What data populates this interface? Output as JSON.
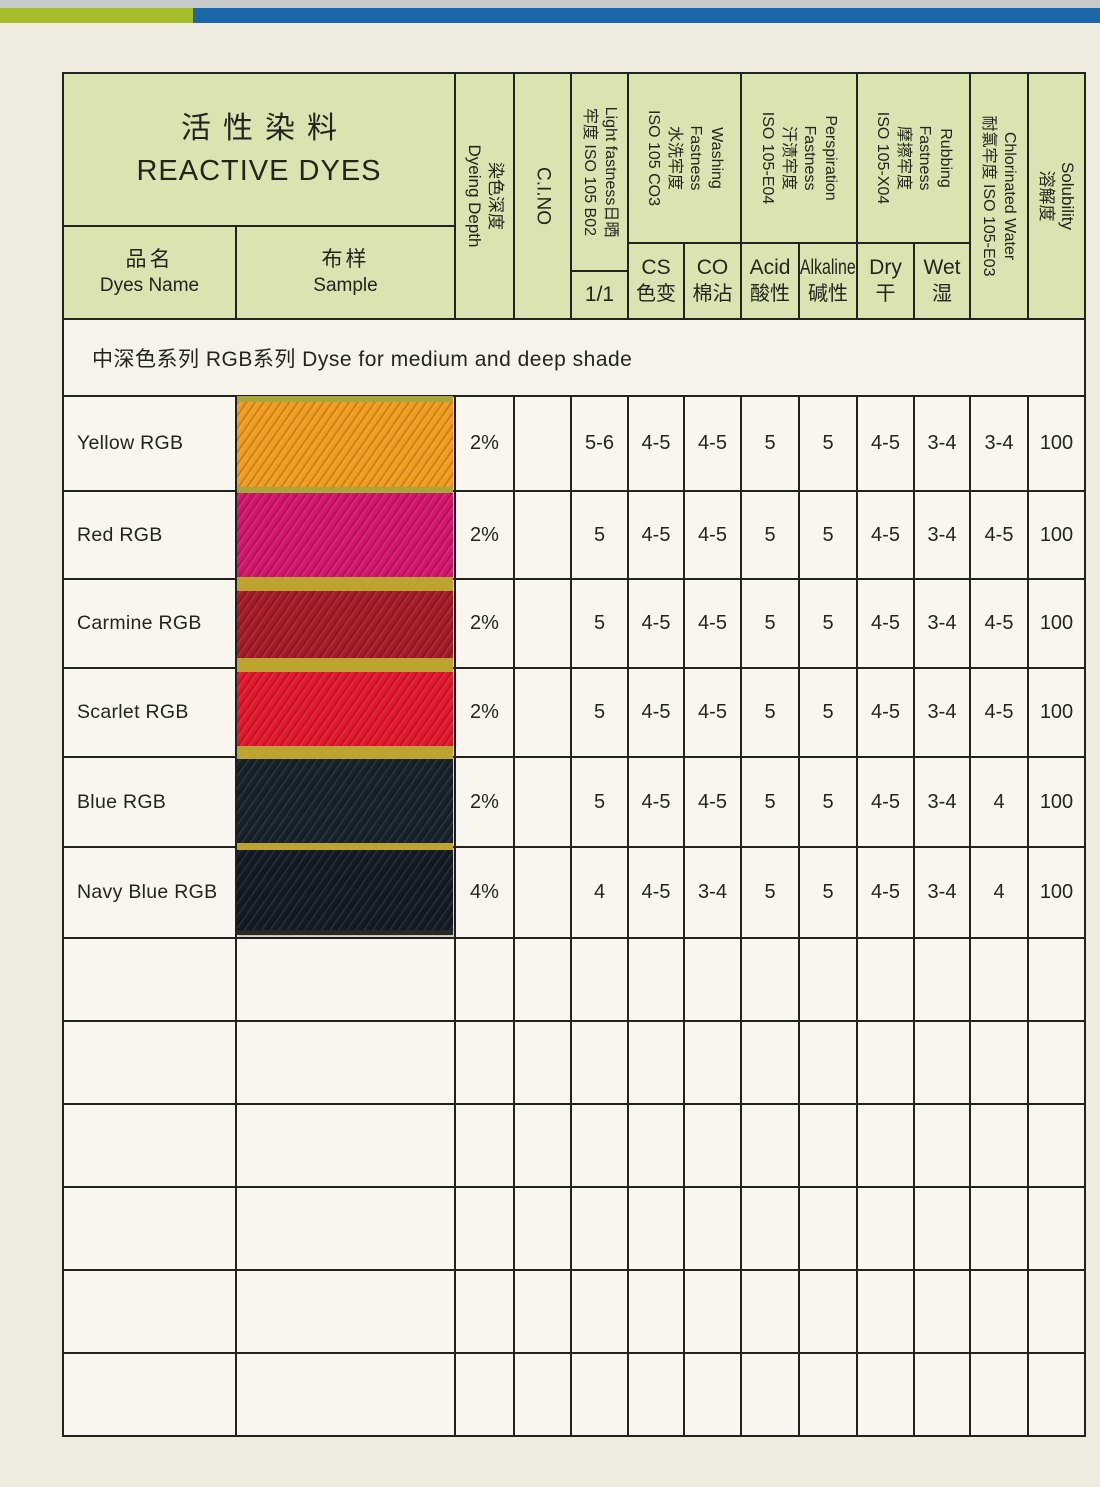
{
  "top_bar": {
    "gray": "#c8cac7",
    "green": "#a4bd28",
    "blue": "#1b67a9"
  },
  "colors": {
    "page_bg": "#efebdf",
    "cell_bg": "#f9f6ef",
    "header_bg": "#dae4b0",
    "border": "#22221f"
  },
  "header": {
    "title_cjk": "活性染料",
    "title_en": "REACTIVE DYES",
    "dyes_name": {
      "cjk": "品名",
      "en": "Dyes Name"
    },
    "sample": {
      "cjk": "布样",
      "en": "Sample"
    },
    "dyeing_depth": {
      "lines": [
        "染色深度",
        "Dyeing Depth"
      ]
    },
    "ci_no": {
      "lines": [
        "C.I.NO"
      ]
    },
    "light": {
      "lines": [
        "Light fastness日晒",
        "牢度 ISO 105 B02"
      ],
      "sub": "1/1"
    },
    "washing": {
      "lines": [
        "Washing",
        "Fastness",
        "水洗牢度",
        "ISO 105 CO3"
      ],
      "sub1": {
        "en": "CS",
        "cjk": "色变"
      },
      "sub2": {
        "en": "CO",
        "cjk": "棉沾"
      }
    },
    "perspiration": {
      "lines": [
        "Perspiration",
        "Fastness",
        "汗渍牢度",
        "ISO 105-E04"
      ],
      "sub1": {
        "en": "Acid",
        "cjk": "酸性"
      },
      "sub2": {
        "en": "Alkaline",
        "cjk": "碱性"
      }
    },
    "rubbing": {
      "lines": [
        "Rubbing",
        "Fastness",
        "摩擦牢度",
        "ISO 105-X04"
      ],
      "sub1": {
        "en": "Dry",
        "cjk": "干"
      },
      "sub2": {
        "en": "Wet",
        "cjk": "湿"
      }
    },
    "chlorinated": {
      "lines": [
        "Chlorinated Water",
        "耐氯牢度 ISO 105-E03"
      ]
    },
    "solubility": {
      "lines": [
        "Solubility",
        "溶解度"
      ]
    }
  },
  "section": {
    "label": "中深色系列  RGB系列  Dyse for medium and deep shade"
  },
  "table": {
    "value_columns": [
      "Light fastness 1/1",
      "Washing CS",
      "Washing CO",
      "Perspiration Acid",
      "Perspiration Alkaline",
      "Rubbing Dry",
      "Rubbing Wet",
      "Chlorinated Water",
      "Solubility"
    ],
    "rows": [
      {
        "name": "Yellow RGB",
        "sample_color": "#f09c1e",
        "dyeing_depth": "2%",
        "ci_no": "",
        "values": [
          "5-6",
          "4-5",
          "4-5",
          "5",
          "5",
          "4-5",
          "3-4",
          "3-4",
          "100"
        ]
      },
      {
        "name": "Red RGB",
        "sample_color": "#d4156e",
        "dyeing_depth": "2%",
        "ci_no": "",
        "values": [
          "5",
          "4-5",
          "4-5",
          "5",
          "5",
          "4-5",
          "3-4",
          "4-5",
          "100"
        ]
      },
      {
        "name": "Carmine RGB",
        "sample_color": "#a51b27",
        "dyeing_depth": "2%",
        "ci_no": "",
        "values": [
          "5",
          "4-5",
          "4-5",
          "5",
          "5",
          "4-5",
          "3-4",
          "4-5",
          "100"
        ]
      },
      {
        "name": "Scarlet RGB",
        "sample_color": "#e2182c",
        "dyeing_depth": "2%",
        "ci_no": "",
        "values": [
          "5",
          "4-5",
          "4-5",
          "5",
          "5",
          "4-5",
          "3-4",
          "4-5",
          "100"
        ]
      },
      {
        "name": "Blue RGB",
        "sample_color": "#17222c",
        "dyeing_depth": "2%",
        "ci_no": "",
        "values": [
          "5",
          "4-5",
          "4-5",
          "5",
          "5",
          "4-5",
          "3-4",
          "4",
          "100"
        ]
      },
      {
        "name": "Navy Blue RGB",
        "sample_color": "#121b24",
        "dyeing_depth": "4%",
        "ci_no": "",
        "values": [
          "4",
          "4-5",
          "3-4",
          "5",
          "5",
          "4-5",
          "3-4",
          "4",
          "100"
        ]
      },
      {
        "name": "",
        "sample_color": "",
        "dyeing_depth": "",
        "ci_no": "",
        "values": [
          "",
          "",
          "",
          "",
          "",
          "",
          "",
          "",
          ""
        ]
      },
      {
        "name": "",
        "sample_color": "",
        "dyeing_depth": "",
        "ci_no": "",
        "values": [
          "",
          "",
          "",
          "",
          "",
          "",
          "",
          "",
          ""
        ]
      },
      {
        "name": "",
        "sample_color": "",
        "dyeing_depth": "",
        "ci_no": "",
        "values": [
          "",
          "",
          "",
          "",
          "",
          "",
          "",
          "",
          ""
        ]
      },
      {
        "name": "",
        "sample_color": "",
        "dyeing_depth": "",
        "ci_no": "",
        "values": [
          "",
          "",
          "",
          "",
          "",
          "",
          "",
          "",
          ""
        ]
      },
      {
        "name": "",
        "sample_color": "",
        "dyeing_depth": "",
        "ci_no": "",
        "values": [
          "",
          "",
          "",
          "",
          "",
          "",
          "",
          "",
          ""
        ]
      },
      {
        "name": "",
        "sample_color": "",
        "dyeing_depth": "",
        "ci_no": "",
        "values": [
          "",
          "",
          "",
          "",
          "",
          "",
          "",
          "",
          ""
        ]
      }
    ]
  },
  "swatch": {
    "separator_color": "#bda32f",
    "top_edge_color": "#aaa43c",
    "bottom_edge_color": "#2a2a20"
  }
}
